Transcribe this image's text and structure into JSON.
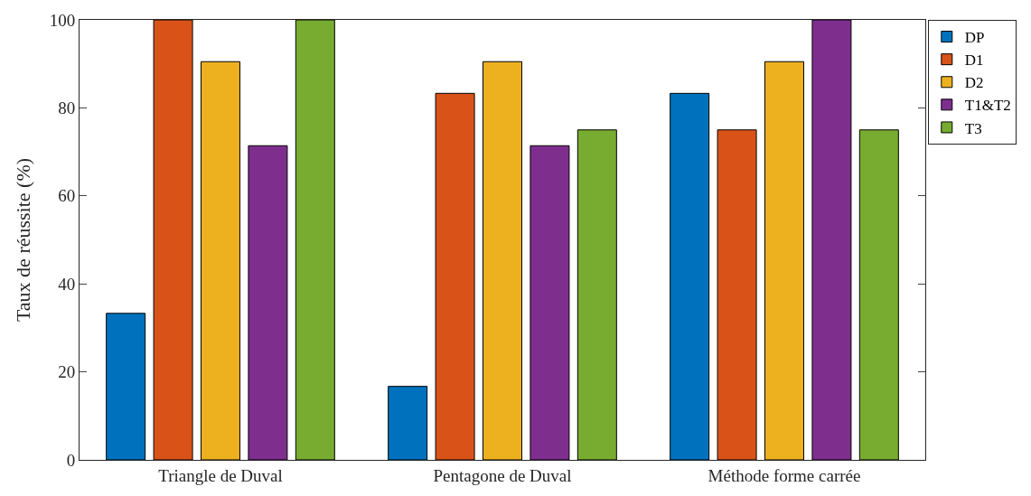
{
  "chart_data": {
    "type": "bar",
    "ylabel": "Taux de réussite (%)",
    "categories": [
      "Triangle de Duval",
      "Pentagone de Duval",
      "Méthode forme carrée"
    ],
    "series": [
      {
        "name": "DP",
        "color": "#0072bd",
        "values": [
          33.3,
          16.7,
          83.3
        ]
      },
      {
        "name": "D1",
        "color": "#d95319",
        "values": [
          100,
          83.3,
          75
        ]
      },
      {
        "name": "D2",
        "color": "#edb120",
        "values": [
          90.5,
          90.5,
          90.5
        ]
      },
      {
        "name": "T1&T2",
        "color": "#7e2f8e",
        "values": [
          71.4,
          71.4,
          100
        ]
      },
      {
        "name": "T3",
        "color": "#77ac30",
        "values": [
          100,
          75,
          75
        ]
      }
    ],
    "ylim": [
      0,
      100
    ],
    "yticks": [
      0,
      20,
      40,
      60,
      80,
      100
    ],
    "legend": "top right"
  }
}
